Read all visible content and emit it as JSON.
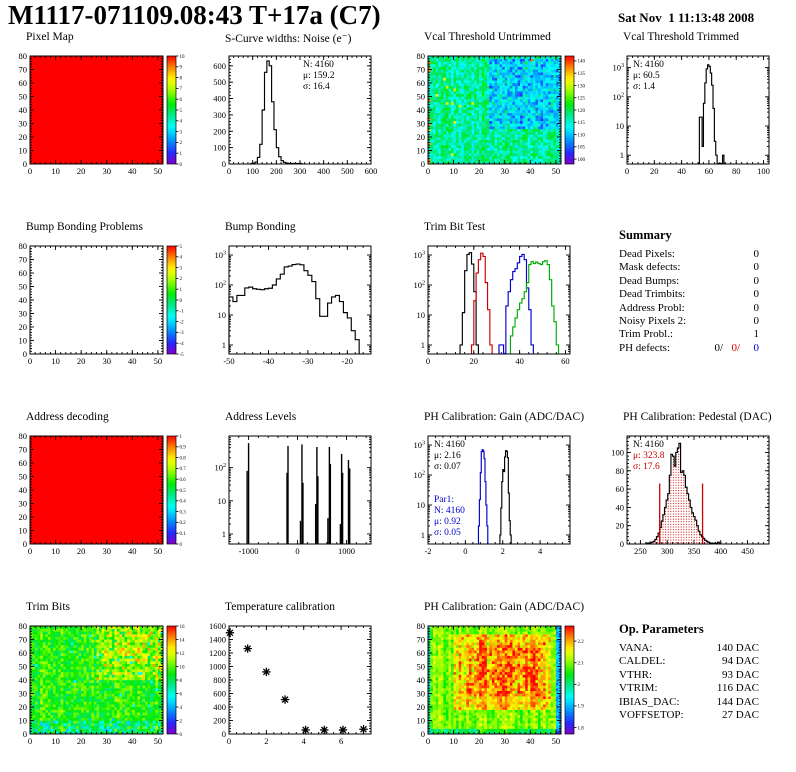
{
  "header": {
    "title": "M1117-071109.08:43 T+17a (C7)",
    "date": "Sat Nov  1 11:13:48 2008"
  },
  "summary": {
    "heading": "Summary",
    "rows": [
      {
        "label": "Dead Pixels:",
        "value": "0"
      },
      {
        "label": "Mask defects:",
        "value": "0"
      },
      {
        "label": "Dead Bumps:",
        "value": "0"
      },
      {
        "label": "Dead Trimbits:",
        "value": "0"
      },
      {
        "label": "Address Probl:",
        "value": "0"
      },
      {
        "label": "Noisy Pixels 2:",
        "value": "0"
      },
      {
        "label": "Trim Probl.:",
        "value": "1"
      }
    ],
    "ph_defects": {
      "label": "PH defects:",
      "v1": "0/",
      "v2": "0/",
      "v3": "0"
    }
  },
  "op_parameters": {
    "heading": "Op. Parameters",
    "rows": [
      {
        "label": "VANA:",
        "value": "140 DAC"
      },
      {
        "label": "CALDEL:",
        "value": "94 DAC"
      },
      {
        "label": "VTHR:",
        "value": "93 DAC"
      },
      {
        "label": "VTRIM:",
        "value": "116 DAC"
      },
      {
        "label": "IBIAS_DAC:",
        "value": "144 DAC"
      },
      {
        "label": "VOFFSETOP:",
        "value": "27 DAC"
      }
    ]
  },
  "chart_data": [
    {
      "type": "heatmap",
      "title": "Pixel Map",
      "xlim": [
        0,
        52
      ],
      "ylim": [
        0,
        80
      ],
      "xticks": [
        0,
        10,
        20,
        30,
        40,
        50
      ],
      "yticks": [
        0,
        10,
        20,
        30,
        40,
        50,
        60,
        70,
        80
      ],
      "fill": "uniform",
      "uniform_color": "#ff0000",
      "colorbar": {
        "min": 0,
        "max": 10,
        "ticks": [
          "0",
          "1",
          "2",
          "3",
          "4",
          "5",
          "6",
          "7",
          "8",
          "9",
          "10"
        ]
      }
    },
    {
      "type": "histogram",
      "title": "S-Curve widths: Noise (e⁻)",
      "yscale": "linear",
      "xlim": [
        0,
        600
      ],
      "ylim": [
        0,
        660
      ],
      "xticks": [
        0,
        100,
        200,
        300,
        400,
        500,
        600
      ],
      "yticks": [
        0,
        100,
        200,
        300,
        400,
        500,
        600
      ],
      "stats": [
        {
          "text": "N: 4160",
          "color": "#000000"
        },
        {
          "text": "μ: 159.2",
          "color": "#000000"
        },
        {
          "text": "σ: 16.4",
          "color": "#000000"
        }
      ],
      "stats_pos": "tr",
      "series": [
        {
          "color": "#000000",
          "x0": 90,
          "binw": 10,
          "values": [
            2,
            5,
            12,
            40,
            120,
            330,
            560,
            630,
            600,
            380,
            210,
            100,
            45,
            20,
            10,
            6,
            3,
            2,
            1,
            0,
            3,
            0
          ]
        }
      ]
    },
    {
      "type": "heatmap",
      "title": "Vcal Threshold Untrimmed",
      "xlim": [
        0,
        52
      ],
      "ylim": [
        0,
        80
      ],
      "xticks": [
        0,
        10,
        20,
        30,
        40,
        50
      ],
      "yticks": [
        0,
        10,
        20,
        30,
        40,
        50,
        60,
        70,
        80
      ],
      "colorbar": {
        "min": 98,
        "max": 142,
        "ticks": [
          "100",
          "105",
          "110",
          "115",
          "120",
          "125",
          "130",
          "135",
          "140"
        ]
      },
      "noise": {
        "seed": 7,
        "base": 117,
        "amp": 4.5,
        "col_amp": 2,
        "regions": [
          {
            "x": [
              24,
              52
            ],
            "y": [
              26,
              78
            ],
            "delta": -6,
            "amp": 3.5
          }
        ],
        "specks": [
          {
            "x": [
              0,
              1.5
            ],
            "y": [
              0,
              80
            ],
            "p": 0.25,
            "value": 137
          },
          {
            "x": [
              0,
              18
            ],
            "y": [
              0,
              80
            ],
            "p": 0.02,
            "value": 131
          },
          {
            "x": [
              40,
              52
            ],
            "y": [
              74,
              80
            ],
            "p": 0.04,
            "value": 138
          }
        ]
      }
    },
    {
      "type": "histogram",
      "title": "Vcal Threshold Trimmed",
      "yscale": "log",
      "xlim": [
        0,
        104
      ],
      "ylim": [
        0.5,
        2500
      ],
      "xticks": [
        0,
        20,
        40,
        60,
        80,
        100
      ],
      "stats": [
        {
          "text": "N: 4160",
          "color": "#000000"
        },
        {
          "text": "μ: 60.5",
          "color": "#000000"
        },
        {
          "text": "σ:  1.4",
          "color": "#000000"
        }
      ],
      "stats_pos": "tl",
      "series": [
        {
          "color": "#000000",
          "x0": 52,
          "binw": 1,
          "values": [
            0,
            20,
            20,
            2,
            60,
            300,
            900,
            1250,
            1100,
            650,
            250,
            40,
            3,
            1,
            0,
            0,
            0,
            0,
            1,
            0
          ]
        }
      ]
    },
    {
      "type": "heatmap",
      "title": "Bump Bonding Problems",
      "xlim": [
        0,
        52
      ],
      "ylim": [
        0,
        80
      ],
      "xticks": [
        0,
        10,
        20,
        30,
        40,
        50
      ],
      "yticks": [
        0,
        10,
        20,
        30,
        40,
        50,
        60,
        70,
        80
      ],
      "fill": "empty",
      "colorbar": {
        "min": -5,
        "max": 5,
        "ticks": [
          "-5",
          "-4",
          "-3",
          "-2",
          "-1",
          "0",
          "1",
          "2",
          "3",
          "4",
          "5"
        ]
      }
    },
    {
      "type": "histogram",
      "title": "Bump Bonding",
      "yscale": "log",
      "xlim": [
        -50,
        -14
      ],
      "ylim": [
        0.5,
        2000
      ],
      "xticks": [
        -50,
        -40,
        -30,
        -20
      ],
      "series": [
        {
          "color": "#000000",
          "x0": -50,
          "binw": 1,
          "values": [
            40,
            28,
            45,
            45,
            80,
            85,
            75,
            72,
            70,
            75,
            78,
            100,
            160,
            230,
            400,
            430,
            480,
            500,
            470,
            300,
            210,
            130,
            35,
            9,
            9,
            25,
            40,
            45,
            28,
            12,
            8,
            3,
            1.5
          ]
        }
      ]
    },
    {
      "type": "histogram",
      "title": "Trim Bit Test",
      "yscale": "log",
      "xlim": [
        0,
        62
      ],
      "ylim": [
        0.5,
        2000
      ],
      "xticks": [
        0,
        20,
        40,
        60
      ],
      "series": [
        {
          "color": "#000000",
          "x0": 14,
          "binw": 1,
          "values": [
            1,
            12,
            300,
            1050,
            1200,
            500,
            60,
            1
          ]
        },
        {
          "color": "#cc0000",
          "x0": 19,
          "binw": 1,
          "values": [
            1,
            30,
            250,
            700,
            1150,
            900,
            120,
            15,
            1
          ]
        },
        {
          "color": "#0000cc",
          "x0": 31,
          "binw": 1,
          "values": [
            1,
            1,
            0,
            20,
            60,
            150,
            280,
            350,
            550,
            900,
            1050,
            700,
            80,
            15,
            1
          ]
        },
        {
          "color": "#00aa00",
          "x0": 36,
          "binw": 1,
          "values": [
            2,
            4,
            8,
            15,
            25,
            35,
            60,
            120,
            480,
            600,
            520,
            580,
            520,
            480,
            600,
            650,
            480,
            150,
            20,
            6,
            1
          ]
        }
      ]
    },
    {
      "type": "heatmap",
      "title": "Address decoding",
      "xlim": [
        0,
        52
      ],
      "ylim": [
        0,
        80
      ],
      "xticks": [
        0,
        10,
        20,
        30,
        40,
        50
      ],
      "yticks": [
        0,
        10,
        20,
        30,
        40,
        50,
        60,
        70,
        80
      ],
      "fill": "uniform",
      "uniform_color": "#ff0000",
      "colorbar": {
        "min": 0,
        "max": 1,
        "ticks": [
          "0",
          "0.1",
          "0.2",
          "0.3",
          "0.4",
          "0.5",
          "0.6",
          "0.7",
          "0.8",
          "0.9",
          "1"
        ]
      }
    },
    {
      "type": "histogram",
      "title": "Address Levels",
      "yscale": "log",
      "xlim": [
        -1400,
        1500
      ],
      "ylim": [
        0.5,
        900
      ],
      "xticks": [
        -1000,
        0,
        1000
      ],
      "series": [
        {
          "color": "#000000",
          "spikes": [
            [
              -1030,
              80
            ],
            [
              -1000,
              550
            ],
            [
              -215,
              70
            ],
            [
              -195,
              450
            ],
            [
              60,
              2.5
            ],
            [
              90,
              500
            ],
            [
              110,
              35
            ],
            [
              370,
              8
            ],
            [
              395,
              420
            ],
            [
              415,
              55
            ],
            [
              620,
              3
            ],
            [
              650,
              420
            ],
            [
              670,
              130
            ],
            [
              875,
              2
            ],
            [
              900,
              260
            ],
            [
              920,
              70
            ],
            [
              1040,
              170
            ],
            [
              1065,
              95
            ]
          ]
        }
      ]
    },
    {
      "type": "histogram",
      "title": "PH Calibration: Gain (ADC/DAC)",
      "yscale": "log",
      "xlim": [
        -2,
        5.6
      ],
      "ylim": [
        0.5,
        2000
      ],
      "xticks": [
        -2,
        0,
        2,
        4
      ],
      "stats": [
        {
          "text": "N: 4160",
          "color": "#000000"
        },
        {
          "text": "μ: 2.16",
          "color": "#000000"
        },
        {
          "text": "σ: 0.07",
          "color": "#000000"
        },
        {
          "text": ""
        },
        {
          "text": ""
        },
        {
          "text": "Par1:",
          "color": "#0000cc"
        },
        {
          "text": "N: 4160",
          "color": "#0000cc"
        },
        {
          "text": "μ: 0.92",
          "color": "#0000cc"
        },
        {
          "text": "σ: 0.05",
          "color": "#0000cc"
        }
      ],
      "stats_pos": "tl",
      "series": [
        {
          "color": "#0000cc",
          "x0": 0.7,
          "binw": 0.05,
          "values": [
            2,
            15,
            120,
            600,
            700,
            620,
            350,
            60,
            10,
            2
          ]
        },
        {
          "color": "#000000",
          "x0": 1.85,
          "binw": 0.05,
          "values": [
            1,
            8,
            60,
            150,
            130,
            400,
            650,
            620,
            380,
            25,
            3,
            1
          ]
        }
      ]
    },
    {
      "type": "histogram",
      "title": "PH Calibration: Pedestal (DAC)",
      "yscale": "linear",
      "xlim": [
        225,
        490
      ],
      "ylim": [
        0,
        118
      ],
      "xticks": [
        250,
        300,
        350,
        400,
        450
      ],
      "yticks": [
        0,
        20,
        40,
        60,
        80,
        100
      ],
      "stats": [
        {
          "text": "N: 4160",
          "color": "#000000"
        },
        {
          "text": "μ: 323.8",
          "color": "#cc0000"
        },
        {
          "text": "σ: 17.6",
          "color": "#cc0000"
        }
      ],
      "stats_pos": "tl",
      "vlines": [
        {
          "x": 286,
          "ymax": 66,
          "color": "#cc0000"
        },
        {
          "x": 366,
          "ymax": 66,
          "color": "#cc0000"
        }
      ],
      "series": [
        {
          "color": "#000000",
          "fill": "hatch-red",
          "x0": 262,
          "binw": 3,
          "values": [
            1,
            1,
            2,
            2,
            3,
            5,
            8,
            12,
            18,
            25,
            32,
            40,
            48,
            55,
            75,
            98,
            96,
            85,
            100,
            105,
            110,
            78,
            80,
            75,
            62,
            55,
            48,
            40,
            34,
            30,
            26,
            20,
            14,
            10,
            8,
            6,
            4,
            3,
            2,
            1,
            1,
            0,
            1,
            0,
            2,
            1
          ]
        }
      ]
    },
    {
      "type": "heatmap",
      "title": "Trim Bits",
      "xlim": [
        0,
        52
      ],
      "ylim": [
        0,
        80
      ],
      "xticks": [
        0,
        10,
        20,
        30,
        40,
        50
      ],
      "yticks": [
        0,
        10,
        20,
        30,
        40,
        50,
        60,
        70,
        80
      ],
      "colorbar": {
        "min": 0,
        "max": 16,
        "ticks": [
          "0",
          "2",
          "4",
          "6",
          "8",
          "10",
          "12",
          "14",
          "16"
        ]
      },
      "noise": {
        "seed": 13,
        "base": 9.3,
        "amp": 1.5,
        "col_amp": 0.6,
        "regions": [
          {
            "x": [
              26,
              52
            ],
            "y": [
              40,
              80
            ],
            "delta": 1.5,
            "amp": 2.0
          },
          {
            "x": [
              0,
              52
            ],
            "y": [
              0,
              10
            ],
            "delta": -1.2,
            "amp": 1.6
          }
        ],
        "specks": [
          {
            "x": [
              2,
              40
            ],
            "y": [
              0,
              12
            ],
            "p": 0.08,
            "value": 4.5
          },
          {
            "x": [
              0,
              52
            ],
            "y": [
              0,
              80
            ],
            "p": 0.015,
            "value": 5.5
          },
          {
            "x": [
              28,
              52
            ],
            "y": [
              44,
              78
            ],
            "p": 0.05,
            "value": 14
          }
        ]
      }
    },
    {
      "type": "scatter",
      "title": "Temperature calibration",
      "yscale": "linear",
      "xlim": [
        0,
        7.6
      ],
      "ylim": [
        0,
        1600
      ],
      "xticks": [
        0,
        2,
        4,
        6
      ],
      "yticks": [
        0,
        200,
        400,
        600,
        800,
        1000,
        1200,
        1400,
        1600
      ],
      "marker": "asterisk",
      "points": [
        [
          0.05,
          1500
        ],
        [
          1,
          1265
        ],
        [
          2,
          920
        ],
        [
          3,
          510
        ],
        [
          4.1,
          60
        ],
        [
          5.1,
          60
        ],
        [
          6.1,
          60
        ],
        [
          7.2,
          70
        ]
      ]
    },
    {
      "type": "heatmap",
      "title": "PH Calibration: Gain (ADC/DAC)",
      "xlim": [
        0,
        52
      ],
      "ylim": [
        0,
        80
      ],
      "xticks": [
        0,
        10,
        20,
        30,
        40,
        50
      ],
      "yticks": [
        0,
        10,
        20,
        30,
        40,
        50,
        60,
        70,
        80
      ],
      "colorbar": {
        "min": 1.77,
        "max": 2.27,
        "ticks": [
          "1.8",
          "1.9",
          "2",
          "2.1",
          "2.2"
        ]
      },
      "noise": {
        "seed": 21,
        "base": 2.1,
        "amp": 0.035,
        "col_amp": 0.03,
        "regions": [
          {
            "x": [
              10,
              48
            ],
            "y": [
              18,
              74
            ],
            "delta": 0.08,
            "amp": 0.045
          },
          {
            "x": [
              16,
              44
            ],
            "y": [
              28,
              66
            ],
            "delta": 0.035,
            "amp": 0.035
          },
          {
            "x": [
              0,
              1.5
            ],
            "y": [
              0,
              80
            ],
            "delta": -0.12,
            "amp": 0.02
          },
          {
            "x": [
              50.5,
              52
            ],
            "y": [
              0,
              80
            ],
            "delta": -0.2,
            "amp": 0.01
          },
          {
            "x": [
              0,
              52
            ],
            "y": [
              0,
              5
            ],
            "delta": -0.07,
            "amp": 0.02
          }
        ]
      }
    }
  ]
}
